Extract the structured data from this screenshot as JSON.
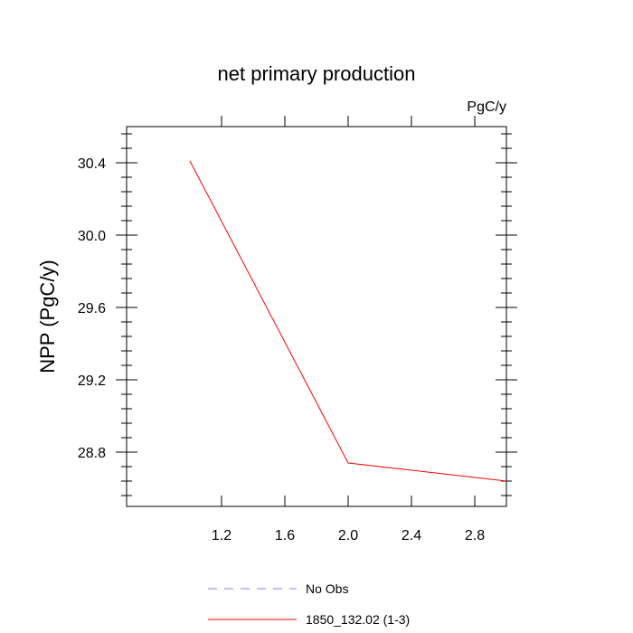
{
  "chart_data": {
    "type": "line",
    "title": "net primary production",
    "units_label": "PgC/y",
    "xlabel": "",
    "ylabel": "NPP  (PgC/y)",
    "xlim": [
      0.6,
      3.0
    ],
    "ylim": [
      28.5,
      30.6
    ],
    "x_ticks": [
      1.2,
      1.6,
      2.0,
      2.4,
      2.8
    ],
    "x_tick_labels": [
      "1.2",
      "1.6",
      "2.0",
      "2.4",
      "2.8"
    ],
    "y_ticks": [
      28.8,
      29.2,
      29.6,
      30.0,
      30.4
    ],
    "y_tick_labels": [
      "28.8",
      "29.2",
      "29.6",
      "30.0",
      "30.4"
    ],
    "series": [
      {
        "name": "No Obs",
        "color": "#7f7fff",
        "dash": "dashed",
        "x": [],
        "y": []
      },
      {
        "name": "1850_132.02 (1-3)",
        "color": "#ff0000",
        "dash": "solid",
        "x": [
          1,
          2,
          3
        ],
        "y": [
          30.41,
          28.74,
          28.64
        ]
      }
    ],
    "legend_position": "bottom"
  }
}
